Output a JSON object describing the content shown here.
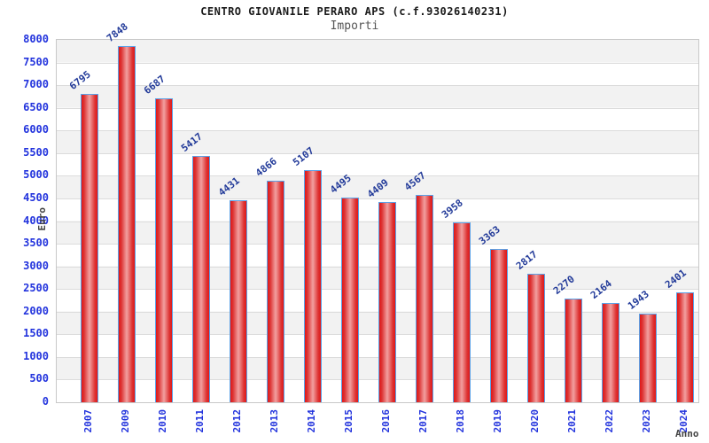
{
  "chart_data": {
    "type": "bar",
    "title": "CENTRO GIOVANILE PERARO APS (c.f.93026140231)",
    "subtitle": "Importi",
    "xlabel": "Anno",
    "ylabel": "Euro",
    "categories": [
      "2007",
      "2009",
      "2010",
      "2011",
      "2012",
      "2013",
      "2014",
      "2015",
      "2016",
      "2017",
      "2018",
      "2019",
      "2020",
      "2021",
      "2022",
      "2023",
      "2024"
    ],
    "values": [
      6795,
      7848,
      6687,
      5417,
      4431,
      4866,
      5107,
      4495,
      4409,
      4567,
      3958,
      3363,
      2817,
      2270,
      2164,
      1943,
      2401
    ],
    "ylim": [
      0,
      8000
    ],
    "ytick_step": 500,
    "yticks": [
      0,
      500,
      1000,
      1500,
      2000,
      2500,
      3000,
      3500,
      4000,
      4500,
      5000,
      5500,
      6000,
      6500,
      7000,
      7500,
      8000
    ],
    "grid": true,
    "background_bands": true,
    "legend": "none",
    "colors": {
      "bar_edge": "#e01818",
      "bar_mid": "#f2a0a0",
      "bar_border": "#5aa2e8",
      "tick_label": "#2233dd",
      "value_label": "#223a99",
      "band": "#f2f2f2",
      "gridline": "#dcdcdc",
      "plot_border": "#c8c8c8",
      "title": "#1a1a1a",
      "subtitle": "#555555",
      "axis_title": "#444444"
    }
  }
}
